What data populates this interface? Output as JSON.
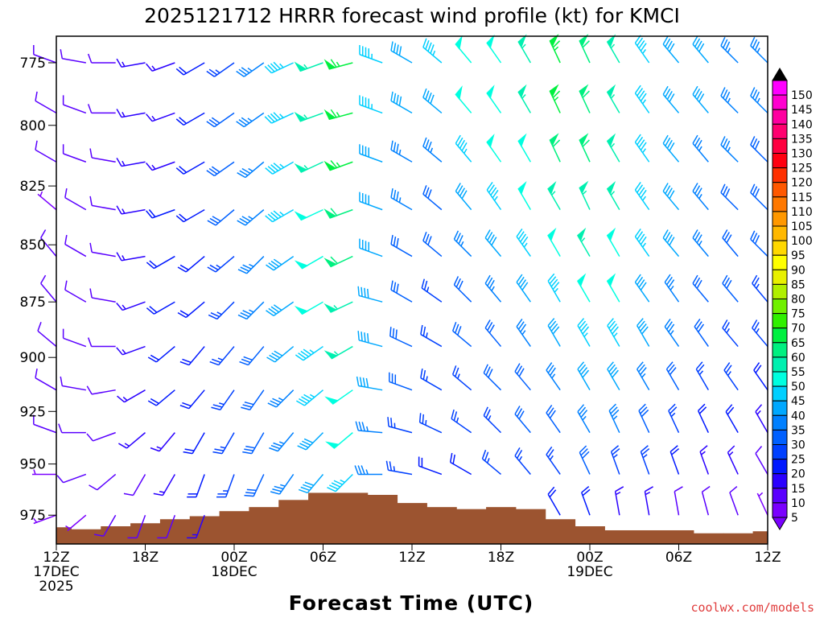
{
  "chart_data": {
    "type": "wind-barb-time-height",
    "title": "2025121712 HRRR forecast wind profile (kt) for KMCI",
    "xlabel": "Forecast Time (UTC)",
    "ylabel": "",
    "credit": "coolwx.com/models",
    "ylim_hpa": [
      765,
      989
    ],
    "xlim_hours": [
      0,
      48
    ],
    "yticks": [
      775,
      800,
      825,
      850,
      875,
      900,
      925,
      950,
      975
    ],
    "xticks": [
      {
        "hour": 0,
        "lines": [
          "12Z",
          "17DEC",
          "2025"
        ]
      },
      {
        "hour": 6,
        "lines": [
          "18Z"
        ]
      },
      {
        "hour": 12,
        "lines": [
          "00Z",
          "18DEC"
        ]
      },
      {
        "hour": 18,
        "lines": [
          "06Z"
        ]
      },
      {
        "hour": 24,
        "lines": [
          "12Z"
        ]
      },
      {
        "hour": 30,
        "lines": [
          "18Z"
        ]
      },
      {
        "hour": 36,
        "lines": [
          "00Z",
          "19DEC"
        ]
      },
      {
        "hour": 42,
        "lines": [
          "06Z"
        ]
      },
      {
        "hour": 48,
        "lines": [
          "12Z"
        ]
      }
    ],
    "colorbar": {
      "labels": [
        5,
        10,
        15,
        20,
        25,
        30,
        35,
        40,
        45,
        50,
        55,
        60,
        65,
        70,
        75,
        80,
        85,
        90,
        95,
        100,
        105,
        110,
        115,
        120,
        125,
        130,
        135,
        140,
        145,
        150
      ],
      "colors": [
        "#7a00ff",
        "#5a00ff",
        "#2a00ff",
        "#0018ff",
        "#0040ff",
        "#0060ff",
        "#0080ff",
        "#00a8ff",
        "#00d0ff",
        "#00ffe0",
        "#00f0b0",
        "#00f080",
        "#00f040",
        "#30f000",
        "#70f000",
        "#b0f000",
        "#e8f000",
        "#ffff00",
        "#ffd800",
        "#ffb800",
        "#ff9800",
        "#ff7800",
        "#ff5800",
        "#ff3000",
        "#ff0010",
        "#ff0040",
        "#ff0070",
        "#ff00a0",
        "#ff00d0",
        "#ff00ff"
      ],
      "over_color": "#000000",
      "under_color": "#7a00ff"
    },
    "levels_hpa": [
      775,
      795,
      815,
      835,
      855,
      875,
      895,
      915,
      935,
      955,
      975
    ],
    "times_hours": [
      0,
      2,
      4,
      6,
      8,
      10,
      12,
      14,
      16,
      18,
      20,
      22,
      24,
      26,
      28,
      30,
      32,
      34,
      36,
      38,
      40,
      42,
      44,
      46,
      48
    ],
    "surface_pressure_hpa": [
      981,
      982,
      980.5,
      979,
      977,
      975.5,
      973,
      971,
      967.5,
      964,
      964,
      965,
      969,
      971,
      972,
      971,
      972,
      977,
      980.5,
      982.5,
      982.5,
      982.5,
      984,
      984,
      983
    ],
    "terrain_color": "#9c5430",
    "speed_kt": [
      [
        10,
        10,
        10,
        5,
        10,
        10,
        10,
        10,
        10,
        5,
        5
      ],
      [
        10,
        10,
        10,
        10,
        10,
        10,
        10,
        10,
        10,
        10,
        5
      ],
      [
        10,
        10,
        10,
        10,
        10,
        10,
        10,
        10,
        10,
        10,
        10
      ],
      [
        15,
        15,
        15,
        15,
        15,
        15,
        15,
        15,
        15,
        10,
        10
      ],
      [
        15,
        15,
        15,
        20,
        20,
        20,
        20,
        20,
        15,
        15,
        10
      ],
      [
        20,
        20,
        20,
        20,
        20,
        20,
        20,
        20,
        20,
        20,
        15
      ],
      [
        25,
        30,
        30,
        30,
        25,
        25,
        25,
        25,
        25,
        25,
        20
      ],
      [
        35,
        35,
        35,
        35,
        35,
        35,
        30,
        30,
        30,
        30,
        25
      ],
      [
        45,
        45,
        45,
        45,
        40,
        40,
        40,
        35,
        35,
        35,
        30
      ],
      [
        55,
        55,
        55,
        50,
        50,
        50,
        45,
        45,
        40,
        40,
        35
      ],
      [
        65,
        65,
        65,
        60,
        60,
        55,
        55,
        50,
        50,
        45,
        40
      ],
      [
        45,
        45,
        40,
        40,
        40,
        40,
        40,
        40,
        35,
        35,
        30
      ],
      [
        40,
        40,
        35,
        35,
        30,
        30,
        30,
        30,
        25,
        25,
        20
      ],
      [
        45,
        40,
        35,
        30,
        30,
        25,
        25,
        25,
        25,
        20,
        20
      ],
      [
        50,
        50,
        45,
        40,
        35,
        30,
        30,
        25,
        25,
        20,
        20
      ],
      [
        50,
        50,
        50,
        45,
        40,
        35,
        30,
        30,
        25,
        25,
        20
      ],
      [
        55,
        55,
        50,
        50,
        45,
        40,
        35,
        30,
        30,
        25,
        20
      ],
      [
        65,
        65,
        60,
        55,
        50,
        45,
        40,
        35,
        30,
        25,
        20
      ],
      [
        60,
        60,
        60,
        55,
        55,
        50,
        45,
        40,
        35,
        30,
        20
      ],
      [
        55,
        55,
        55,
        55,
        50,
        50,
        45,
        40,
        35,
        25,
        15
      ],
      [
        45,
        45,
        45,
        45,
        45,
        40,
        40,
        35,
        30,
        25,
        15
      ],
      [
        40,
        40,
        40,
        40,
        40,
        35,
        35,
        30,
        25,
        20,
        10
      ],
      [
        40,
        40,
        35,
        35,
        35,
        30,
        30,
        25,
        20,
        15,
        10
      ],
      [
        35,
        35,
        35,
        30,
        30,
        30,
        25,
        25,
        20,
        15,
        10
      ],
      [
        35,
        35,
        30,
        30,
        30,
        25,
        25,
        20,
        15,
        10,
        5
      ]
    ],
    "direction_deg": [
      [
        290,
        300,
        300,
        310,
        320,
        320,
        310,
        300,
        290,
        270,
        250
      ],
      [
        280,
        290,
        290,
        300,
        300,
        300,
        290,
        280,
        270,
        250,
        230
      ],
      [
        270,
        270,
        280,
        280,
        280,
        280,
        270,
        260,
        250,
        230,
        210
      ],
      [
        260,
        260,
        260,
        260,
        260,
        250,
        250,
        240,
        230,
        210,
        200
      ],
      [
        250,
        250,
        250,
        250,
        240,
        240,
        230,
        230,
        220,
        210,
        200
      ],
      [
        240,
        240,
        240,
        240,
        230,
        230,
        220,
        220,
        210,
        200,
        200
      ],
      [
        235,
        235,
        235,
        230,
        230,
        225,
        220,
        215,
        210,
        200,
        200
      ],
      [
        235,
        235,
        230,
        230,
        225,
        225,
        220,
        215,
        210,
        205,
        200
      ],
      [
        245,
        245,
        240,
        240,
        235,
        235,
        230,
        225,
        220,
        215,
        210
      ],
      [
        250,
        250,
        245,
        245,
        240,
        240,
        235,
        230,
        225,
        220,
        215
      ],
      [
        255,
        255,
        250,
        250,
        245,
        245,
        240,
        235,
        230,
        225,
        220
      ],
      [
        290,
        290,
        290,
        290,
        290,
        285,
        285,
        280,
        275,
        270,
        260
      ],
      [
        300,
        300,
        300,
        300,
        300,
        300,
        295,
        290,
        285,
        280,
        275
      ],
      [
        310,
        310,
        310,
        310,
        310,
        305,
        300,
        300,
        295,
        290,
        285
      ],
      [
        320,
        320,
        320,
        320,
        315,
        315,
        310,
        310,
        305,
        300,
        300
      ],
      [
        325,
        325,
        325,
        325,
        320,
        320,
        320,
        315,
        315,
        310,
        310
      ],
      [
        330,
        330,
        330,
        330,
        325,
        325,
        325,
        320,
        320,
        320,
        320
      ],
      [
        335,
        335,
        335,
        330,
        330,
        330,
        330,
        325,
        325,
        325,
        330
      ],
      [
        335,
        335,
        335,
        335,
        330,
        330,
        330,
        330,
        330,
        335,
        340
      ],
      [
        330,
        330,
        330,
        330,
        330,
        330,
        330,
        330,
        335,
        340,
        350
      ],
      [
        325,
        325,
        325,
        325,
        325,
        325,
        330,
        330,
        335,
        340,
        350
      ],
      [
        320,
        320,
        320,
        320,
        320,
        325,
        325,
        330,
        335,
        340,
        350
      ],
      [
        320,
        320,
        320,
        320,
        320,
        320,
        325,
        330,
        335,
        340,
        345
      ],
      [
        315,
        315,
        315,
        315,
        320,
        320,
        320,
        325,
        330,
        335,
        340
      ],
      [
        315,
        315,
        315,
        315,
        315,
        320,
        320,
        325,
        330,
        330,
        335
      ]
    ]
  }
}
